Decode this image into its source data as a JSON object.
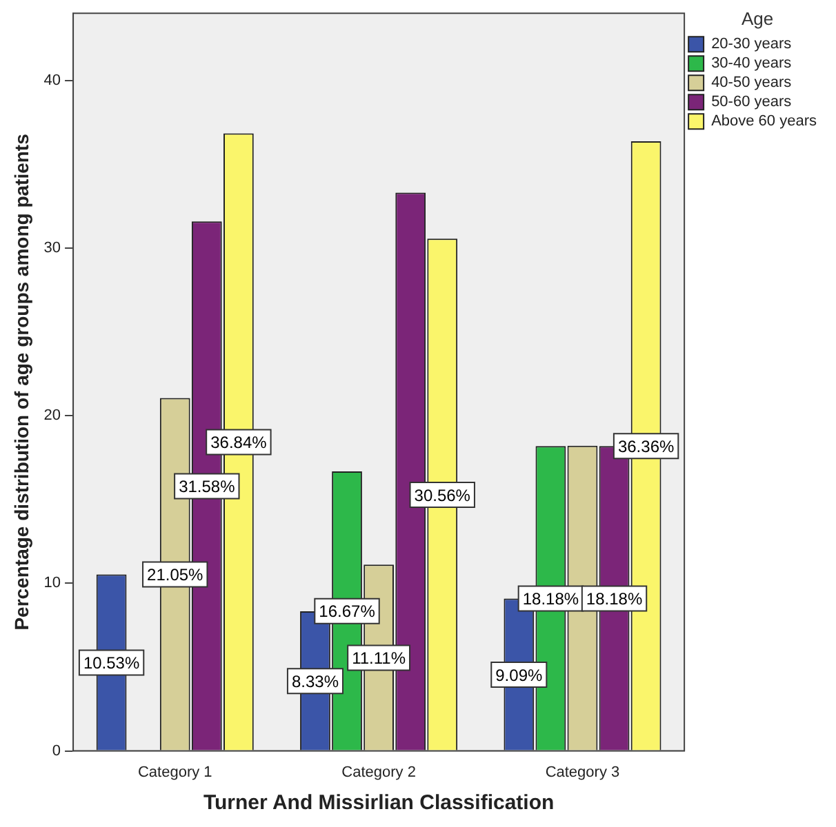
{
  "chart_data": {
    "type": "bar",
    "xlabel": "Turner And Missirlian Classification",
    "ylabel": "Percentage distribution of age groups among patients",
    "legend_title": "Age",
    "categories": [
      "Category 1",
      "Category 2",
      "Category 3"
    ],
    "series": [
      {
        "name": "20-30 years",
        "color": "#3b55a8",
        "values": [
          10.53,
          8.33,
          9.09
        ],
        "value_labels": [
          "10.53%",
          "8.33%",
          "9.09%"
        ]
      },
      {
        "name": "30-40 years",
        "color": "#2db84a",
        "values": [
          null,
          16.67,
          18.18
        ],
        "value_labels": [
          null,
          "16.67%",
          "18.18%"
        ]
      },
      {
        "name": "40-50 years",
        "color": "#d6cf98",
        "values": [
          21.05,
          11.11,
          18.2
        ],
        "value_labels": [
          "21.05%",
          "11.11%",
          null
        ]
      },
      {
        "name": "50-60 years",
        "color": "#7b2578",
        "values": [
          31.58,
          33.3,
          18.18
        ],
        "value_labels": [
          "31.58%",
          null,
          "18.18%"
        ]
      },
      {
        "name": "Above 60 years",
        "color": "#faf56b",
        "values": [
          36.84,
          30.56,
          36.36
        ],
        "value_labels": [
          "36.84%",
          "30.56%",
          "36.36%"
        ]
      }
    ],
    "ylim": [
      0,
      44
    ],
    "yticks": [
      0,
      10,
      20,
      30,
      40
    ],
    "grid": false,
    "legend": "top right"
  }
}
